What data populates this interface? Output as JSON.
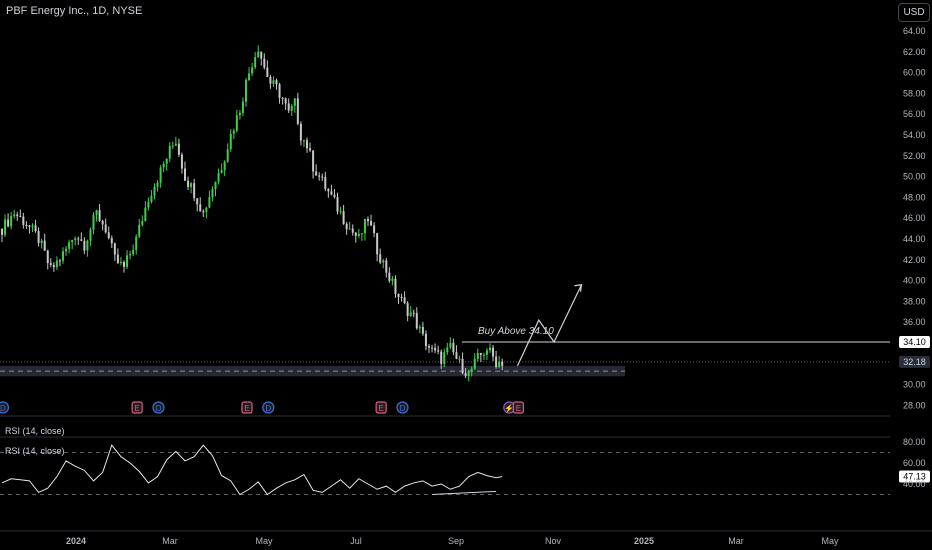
{
  "header": {
    "symbol": "PBF Energy Inc., 1D, NYSE",
    "currency": "USD"
  },
  "rsi_labels": [
    "RSI (14, close)",
    "RSI (14, close)"
  ],
  "annotation": {
    "text": "Buy Above 34.10"
  },
  "price_tags": {
    "level": "34.10",
    "current": "32.18",
    "rsi": "47.13"
  },
  "colors": {
    "up": "#26a69a",
    "bullish_candle": "#3fcf4a",
    "bearish_candle": "#c8c8c8",
    "earnings": "#e05a7b",
    "dividend": "#3d6fd6"
  },
  "chart_data": [
    {
      "type": "candlestick",
      "title": "PBF Energy Inc., 1D, NYSE",
      "x_ticks": [
        "2024",
        "Mar",
        "May",
        "Jul",
        "Sep",
        "Nov",
        "2025",
        "Mar",
        "May"
      ],
      "y_ticks": [
        28,
        30,
        32,
        34,
        36,
        38,
        40,
        42,
        44,
        46,
        48,
        50,
        52,
        54,
        56,
        58,
        60,
        62,
        64
      ],
      "ylim": [
        27.5,
        65
      ],
      "horizontal_level": 34.1,
      "last_price": 32.18,
      "support_zone": [
        30.8,
        31.8
      ],
      "close_path": [
        [
          0,
          45.0
        ],
        [
          4,
          46.5
        ],
        [
          8,
          45.5
        ],
        [
          12,
          44.0
        ],
        [
          16,
          41.0
        ],
        [
          20,
          42.5
        ],
        [
          24,
          44.5
        ],
        [
          27,
          43.5
        ],
        [
          31,
          46.5
        ],
        [
          34,
          45.0
        ],
        [
          37,
          42.0
        ],
        [
          40,
          41.2
        ],
        [
          44,
          44.0
        ],
        [
          48,
          48.0
        ],
        [
          52,
          50.5
        ],
        [
          55,
          52.5
        ],
        [
          57,
          53.5
        ],
        [
          60,
          50.0
        ],
        [
          63,
          48.5
        ],
        [
          66,
          46.5
        ],
        [
          69,
          49.0
        ],
        [
          72,
          51.0
        ],
        [
          75,
          54.0
        ],
        [
          78,
          56.5
        ],
        [
          80,
          59.0
        ],
        [
          82,
          61.0
        ],
        [
          84,
          62.5
        ],
        [
          86,
          60.5
        ],
        [
          88,
          59.0
        ],
        [
          90,
          58.5
        ],
        [
          92,
          57.5
        ],
        [
          94,
          56.0
        ],
        [
          96,
          57.0
        ],
        [
          98,
          54.0
        ],
        [
          100,
          53.0
        ],
        [
          102,
          51.0
        ],
        [
          105,
          49.5
        ],
        [
          108,
          48.0
        ],
        [
          111,
          46.5
        ],
        [
          114,
          45.0
        ],
        [
          117,
          44.0
        ],
        [
          120,
          46.0
        ],
        [
          123,
          43.0
        ],
        [
          126,
          41.0
        ],
        [
          129,
          39.0
        ],
        [
          132,
          37.5
        ],
        [
          135,
          36.5
        ],
        [
          138,
          34.5
        ],
        [
          141,
          33.2
        ],
        [
          144,
          32.5
        ],
        [
          147,
          33.5
        ],
        [
          150,
          32.0
        ],
        [
          153,
          31.0
        ],
        [
          156,
          32.5
        ],
        [
          159,
          33.5
        ],
        [
          162,
          32.2
        ],
        [
          164,
          32.18
        ]
      ],
      "forecast_path": [
        [
          169,
          31.8
        ],
        [
          176,
          36.2
        ],
        [
          181,
          34.1
        ],
        [
          190,
          39.6
        ]
      ],
      "events": [
        {
          "x": -1,
          "label": "D"
        },
        {
          "x": 43,
          "label": "E"
        },
        {
          "x": 50,
          "label": "D"
        },
        {
          "x": 79,
          "label": "E"
        },
        {
          "x": 86,
          "label": "D"
        },
        {
          "x": 123,
          "label": "E"
        },
        {
          "x": 130,
          "label": "D"
        },
        {
          "x": 165,
          "label": "⚡"
        },
        {
          "x": 168,
          "label": "E"
        }
      ]
    },
    {
      "type": "line",
      "title": "RSI (14, close)",
      "y_ticks": [
        40,
        60,
        80
      ],
      "ylim": [
        28,
        82
      ],
      "levels": [
        70,
        30
      ],
      "last_value": 47.13,
      "values": [
        [
          0,
          41
        ],
        [
          3,
          45
        ],
        [
          6,
          44
        ],
        [
          9,
          43
        ],
        [
          12,
          32
        ],
        [
          15,
          36
        ],
        [
          18,
          47
        ],
        [
          21,
          62
        ],
        [
          24,
          57
        ],
        [
          27,
          53
        ],
        [
          30,
          43
        ],
        [
          33,
          51
        ],
        [
          36,
          77
        ],
        [
          39,
          66
        ],
        [
          42,
          60
        ],
        [
          45,
          52
        ],
        [
          48,
          41
        ],
        [
          51,
          47
        ],
        [
          54,
          63
        ],
        [
          57,
          71
        ],
        [
          60,
          62
        ],
        [
          63,
          66
        ],
        [
          66,
          77
        ],
        [
          69,
          67
        ],
        [
          72,
          48
        ],
        [
          75,
          43
        ],
        [
          78,
          30
        ],
        [
          81,
          35
        ],
        [
          84,
          42
        ],
        [
          87,
          30
        ],
        [
          90,
          36
        ],
        [
          93,
          41
        ],
        [
          96,
          44
        ],
        [
          99,
          49
        ],
        [
          102,
          34
        ],
        [
          105,
          32
        ],
        [
          108,
          38
        ],
        [
          111,
          44
        ],
        [
          114,
          36
        ],
        [
          117,
          45
        ],
        [
          120,
          40
        ],
        [
          123,
          35
        ],
        [
          126,
          38
        ],
        [
          129,
          32
        ],
        [
          132,
          38
        ],
        [
          135,
          41
        ],
        [
          138,
          43
        ],
        [
          141,
          38
        ],
        [
          144,
          40
        ],
        [
          147,
          35
        ],
        [
          150,
          38
        ],
        [
          153,
          47
        ],
        [
          156,
          51
        ],
        [
          159,
          48
        ],
        [
          162,
          46
        ],
        [
          164,
          47.13
        ]
      ]
    }
  ]
}
